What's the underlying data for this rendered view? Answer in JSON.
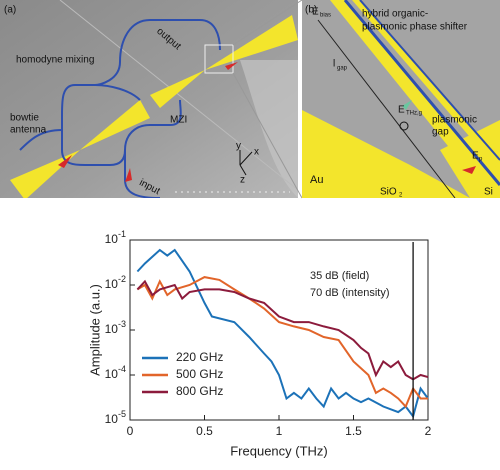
{
  "panel_a": {
    "label": "(a)",
    "output": "output",
    "homodyne": "homodyne mixing",
    "bowtie": [
      "bowtie",
      "antenna"
    ],
    "mzi": "MZI",
    "input": "input",
    "axis_y": "y",
    "axis_x": "x",
    "axis_z": "z"
  },
  "panel_b": {
    "label": "(b)",
    "e_bias": {
      "base": "E",
      "sub": "bias"
    },
    "phase_shifter": [
      "hybrid organic-",
      "plasmonic phase shifter"
    ],
    "l_gap": {
      "base": "l",
      "sub": "gap"
    },
    "e_thz": {
      "base": "E",
      "sub": "THz,g"
    },
    "gap": [
      "plasmonic",
      "gap"
    ],
    "e_p": {
      "base": "E",
      "sub": "p"
    },
    "au": "Au",
    "sio2": {
      "base": "SiO",
      "sub": "2"
    },
    "si": "Si"
  },
  "chart_data": {
    "type": "line",
    "log_y": true,
    "xlabel": "Frequency (THz)",
    "ylabel": "Amplitude (a.u.)",
    "xlim": [
      0,
      2
    ],
    "xticks": [
      0,
      0.5,
      1,
      1.5,
      2
    ],
    "ylim": [
      1e-05,
      0.1
    ],
    "yticks": [
      {
        "value": 1e-05,
        "label": "10-5"
      },
      {
        "value": 0.0001,
        "label": "10-4"
      },
      {
        "value": 0.001,
        "label": "10-3"
      },
      {
        "value": 0.01,
        "label": "10-2"
      },
      {
        "value": 0.1,
        "label": "10-1"
      }
    ],
    "annotations": [
      "35 dB (field)",
      "70 dB (intensity)"
    ],
    "vline": {
      "x": 1.9
    },
    "legend": "lower left",
    "series": [
      {
        "name": "220 GHz",
        "color": "#1c72b8",
        "x": [
          0.05,
          0.1,
          0.2,
          0.25,
          0.3,
          0.4,
          0.5,
          0.55,
          0.7,
          0.8,
          0.9,
          0.95,
          1.0,
          1.05,
          1.1,
          1.15,
          1.2,
          1.25,
          1.3,
          1.35,
          1.4,
          1.45,
          1.5,
          1.55,
          1.6,
          1.7,
          1.8,
          1.85,
          1.9,
          1.95,
          2.0
        ],
        "values": [
          0.02,
          0.03,
          0.06,
          0.045,
          0.06,
          0.02,
          0.004,
          0.002,
          0.0015,
          0.0007,
          0.0003,
          0.0002,
          0.0001,
          3e-05,
          4e-05,
          3e-05,
          5e-05,
          3e-05,
          2e-05,
          5e-05,
          3e-05,
          4e-05,
          3e-05,
          2.5e-05,
          3e-05,
          2e-05,
          1.5e-05,
          2e-05,
          1.2e-05,
          5e-05,
          3e-05
        ]
      },
      {
        "name": "500 GHz",
        "color": "#e2652a",
        "x": [
          0.05,
          0.1,
          0.15,
          0.2,
          0.25,
          0.3,
          0.4,
          0.5,
          0.6,
          0.7,
          0.8,
          0.9,
          1.0,
          1.1,
          1.2,
          1.3,
          1.4,
          1.5,
          1.6,
          1.65,
          1.7,
          1.75,
          1.8,
          1.85,
          1.9,
          1.95,
          2.0
        ],
        "values": [
          0.008,
          0.01,
          0.005,
          0.012,
          0.006,
          0.008,
          0.01,
          0.015,
          0.013,
          0.008,
          0.005,
          0.003,
          0.0015,
          0.0012,
          0.001,
          0.0007,
          0.0006,
          0.0002,
          0.0001,
          4e-05,
          5e-05,
          4e-05,
          3e-05,
          2e-05,
          5e-05,
          3e-05,
          3e-05
        ]
      },
      {
        "name": "800 GHz",
        "color": "#8c1b3c",
        "x": [
          0.05,
          0.1,
          0.15,
          0.2,
          0.3,
          0.35,
          0.4,
          0.5,
          0.6,
          0.7,
          0.8,
          0.9,
          1.0,
          1.1,
          1.2,
          1.3,
          1.4,
          1.5,
          1.55,
          1.6,
          1.65,
          1.7,
          1.75,
          1.8,
          1.85,
          1.9,
          1.95,
          2.0
        ],
        "values": [
          0.008,
          0.012,
          0.006,
          0.008,
          0.01,
          0.005,
          0.007,
          0.008,
          0.008,
          0.007,
          0.005,
          0.004,
          0.002,
          0.0015,
          0.0015,
          0.0012,
          0.001,
          0.0006,
          0.0004,
          0.0003,
          0.0001,
          0.0002,
          0.00015,
          0.0002,
          0.0001,
          8e-05,
          0.0001,
          9e-05
        ]
      }
    ]
  }
}
